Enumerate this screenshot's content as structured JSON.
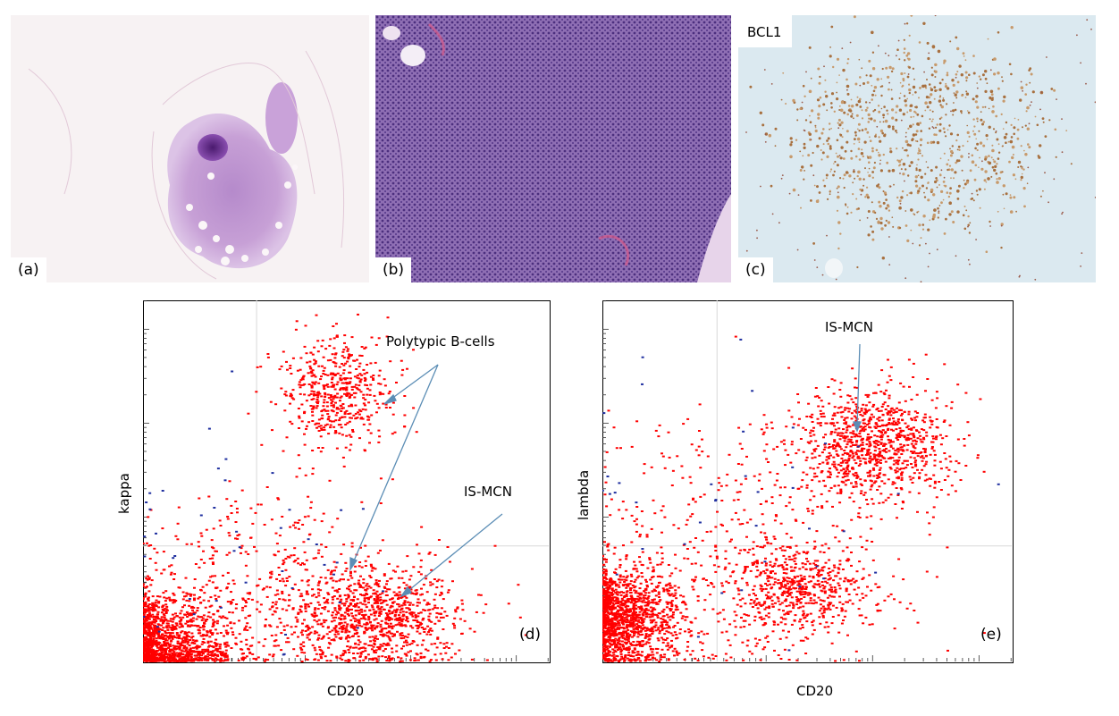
{
  "panels": {
    "a": {
      "label": "(a)"
    },
    "b": {
      "label": "(b)"
    },
    "c": {
      "label": "(c)",
      "stain": "BCL1"
    }
  },
  "chart_data": [
    {
      "type": "scatter",
      "panel": "(d)",
      "xlabel": "CD20",
      "ylabel": "kappa",
      "x_scale": "log",
      "y_scale": "log",
      "grid": "quadrant",
      "annotations": [
        "Polytypic B-cells",
        "IS-MCN"
      ],
      "populations": [
        {
          "color": "#ff0000",
          "center": [
            0.05,
            0.05
          ],
          "spread": [
            0.09,
            0.07
          ],
          "count": 1300
        },
        {
          "color": "#ff0000",
          "center": [
            0.48,
            0.74
          ],
          "spread": [
            0.07,
            0.08
          ],
          "count": 520
        },
        {
          "color": "#ff0000",
          "center": [
            0.58,
            0.12
          ],
          "spread": [
            0.1,
            0.07
          ],
          "count": 900
        },
        {
          "color": "#ff0000",
          "center": [
            0.3,
            0.2
          ],
          "spread": [
            0.18,
            0.14
          ],
          "count": 500
        },
        {
          "color": "#2030a0",
          "center": [
            0.25,
            0.3
          ],
          "spread": [
            0.18,
            0.18
          ],
          "count": 45
        }
      ]
    },
    {
      "type": "scatter",
      "panel": "(e)",
      "xlabel": "CD20",
      "ylabel": "lambda",
      "x_scale": "log",
      "y_scale": "log",
      "grid": "quadrant",
      "annotations": [
        "IS-MCN"
      ],
      "populations": [
        {
          "color": "#ff0000",
          "center": [
            0.05,
            0.12
          ],
          "spread": [
            0.07,
            0.07
          ],
          "count": 1300
        },
        {
          "color": "#ff0000",
          "center": [
            0.66,
            0.6
          ],
          "spread": [
            0.1,
            0.08
          ],
          "count": 950
        },
        {
          "color": "#ff0000",
          "center": [
            0.48,
            0.2
          ],
          "spread": [
            0.09,
            0.06
          ],
          "count": 520
        },
        {
          "color": "#ff0000",
          "center": [
            0.32,
            0.3
          ],
          "spread": [
            0.2,
            0.18
          ],
          "count": 500
        },
        {
          "color": "#2030a0",
          "center": [
            0.35,
            0.45
          ],
          "spread": [
            0.25,
            0.2
          ],
          "count": 40
        }
      ]
    }
  ]
}
